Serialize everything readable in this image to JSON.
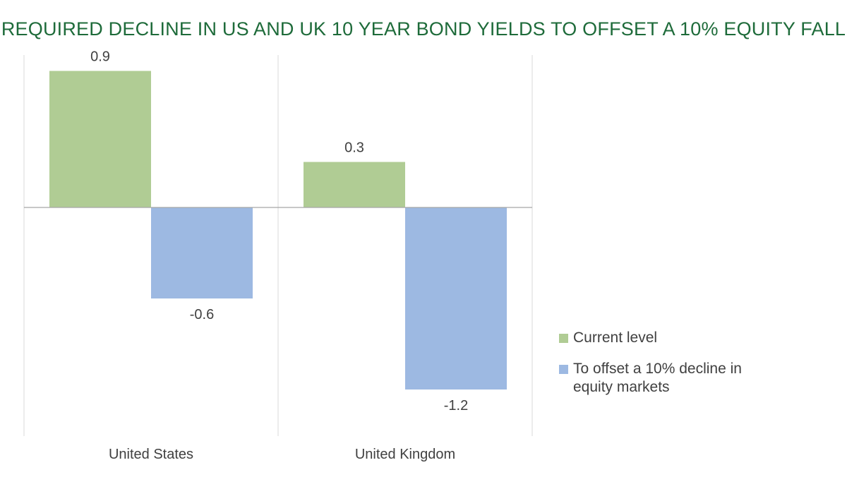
{
  "chart_data": {
    "type": "bar",
    "title": "REQUIRED DECLINE IN US AND UK 10 YEAR BOND YIELDS TO OFFSET A 10% EQUITY FALL",
    "categories": [
      "United States",
      "United Kingdom"
    ],
    "series": [
      {
        "name": "Current level",
        "values": [
          0.9,
          0.3
        ],
        "color": "#b0cc94"
      },
      {
        "name": "To offset a 10% decline in equity markets",
        "values": [
          -0.6,
          -1.2
        ],
        "color": "#9db9e2"
      }
    ],
    "data_labels": [
      [
        "0.9",
        "0.3"
      ],
      [
        "-0.6",
        "-1.2"
      ]
    ],
    "ylim": [
      -1.5,
      1.0
    ],
    "legend_position": "right",
    "grid": false
  }
}
